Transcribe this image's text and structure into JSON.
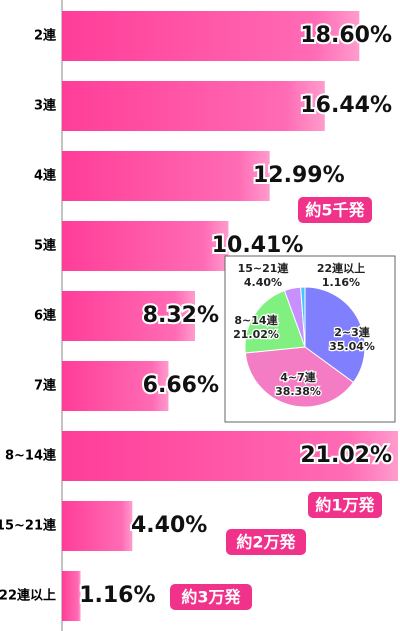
{
  "chart_data": [
    {
      "type": "bar",
      "orientation": "horizontal",
      "categories": [
        "2連",
        "3連",
        "4連",
        "5連",
        "6連",
        "7連",
        "8~14連",
        "15~21連",
        "22連以上"
      ],
      "values": [
        18.6,
        16.44,
        12.99,
        10.41,
        8.32,
        6.66,
        21.02,
        4.4,
        1.16
      ],
      "value_labels": [
        "18.60%",
        "16.44%",
        "12.99%",
        "10.41%",
        "8.32%",
        "6.66%",
        "21.02%",
        "4.40%",
        "1.16%"
      ],
      "color": "#ff5aa8",
      "annotations": [
        "約5千発",
        "約1万発",
        "約2万発",
        "約3万発"
      ]
    },
    {
      "type": "pie",
      "categories": [
        "2~3連",
        "4~7連",
        "8~14連",
        "15~21連",
        "22連以上"
      ],
      "values": [
        35.04,
        38.38,
        21.02,
        4.4,
        1.16
      ],
      "value_labels": [
        "35.04%",
        "38.38%",
        "21.02%",
        "4.40%",
        "1.16%"
      ],
      "colors": [
        "#8080ff",
        "#f47cc4",
        "#80f080",
        "#c890ff",
        "#40c8ff"
      ]
    }
  ]
}
